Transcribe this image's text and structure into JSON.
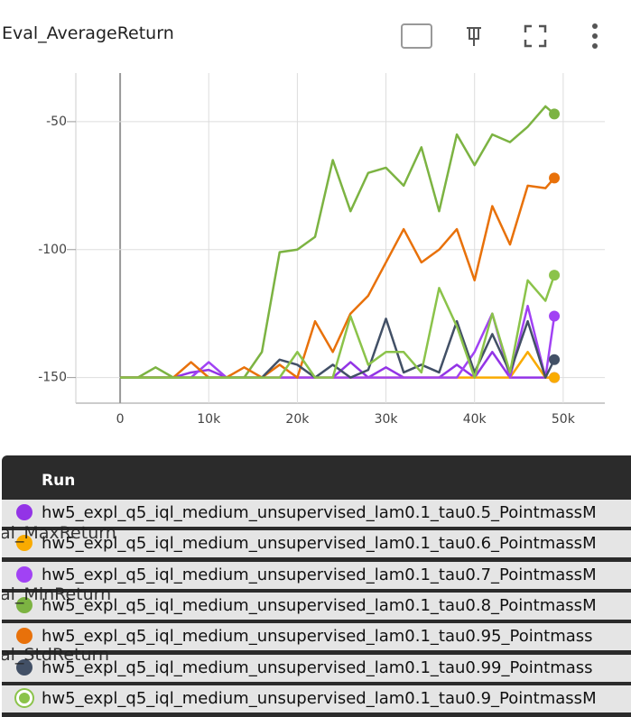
{
  "chart_data": {
    "type": "line",
    "title": "Eval_AverageReturn",
    "x": [
      0,
      2000,
      4000,
      6000,
      8000,
      10000,
      12000,
      14000,
      16000,
      18000,
      20000,
      22000,
      24000,
      26000,
      28000,
      30000,
      32000,
      34000,
      36000,
      38000,
      40000,
      42000,
      44000,
      46000,
      48000,
      49000
    ],
    "xlim": [
      -5000,
      54700
    ],
    "xticks": [
      0,
      {
        "value": 10000,
        "label": "10k"
      },
      {
        "value": 20000,
        "label": "20k"
      },
      {
        "value": 30000,
        "label": "30k"
      },
      {
        "value": 40000,
        "label": "40k"
      },
      {
        "value": 50000,
        "label": "50k"
      }
    ],
    "ylim": [
      -160,
      -31
    ],
    "yticks": [
      -150,
      -100,
      -50
    ],
    "grid": true,
    "series": [
      {
        "name": "hw5_expl_q5_iql_medium_unsupervised_lam0.1_tau0.5_PointmassM",
        "color": "#9334e6",
        "values": [
          -150,
          -150,
          -150,
          -150,
          -148,
          -147,
          -150,
          -150,
          -150,
          -150,
          -150,
          -150,
          -150,
          -144,
          -150,
          -146,
          -150,
          -150,
          -150,
          -145,
          -150,
          -140,
          -150,
          -150,
          -150,
          -150
        ]
      },
      {
        "name": "hw5_expl_q5_iql_medium_unsupervised_lam0.1_tau0.6_PointmassM",
        "color": "#f9ab00",
        "values": [
          -150,
          -150,
          -150,
          -150,
          -150,
          -150,
          -150,
          -150,
          -150,
          -150,
          -150,
          -150,
          -150,
          -150,
          -150,
          -150,
          -150,
          -150,
          -150,
          -150,
          -150,
          -150,
          -150,
          -140,
          -150,
          -150
        ]
      },
      {
        "name": "hw5_expl_q5_iql_medium_unsupervised_lam0.1_tau0.7_PointmassM",
        "color": "#a142f4",
        "values": [
          -150,
          -150,
          -150,
          -150,
          -150,
          -144,
          -150,
          -150,
          -150,
          -150,
          -150,
          -150,
          -150,
          -150,
          -150,
          -150,
          -150,
          -150,
          -150,
          -150,
          -140,
          -125,
          -150,
          -122,
          -150,
          -126
        ]
      },
      {
        "name": "hw5_expl_q5_iql_medium_unsupervised_lam0.1_tau0.8_PointmassM",
        "color": "#7cb342",
        "values": [
          -150,
          -150,
          -146,
          -150,
          -150,
          -150,
          -150,
          -150,
          -140,
          -101,
          -100,
          -95,
          -65,
          -85,
          -70,
          -68,
          -75,
          -60,
          -85,
          -55,
          -67,
          -55,
          -58,
          -52,
          -44,
          -47
        ]
      },
      {
        "name": "hw5_expl_q5_iql_medium_unsupervised_lam0.1_tau0.95_Pointmass",
        "color": "#e8710a",
        "values": [
          -150,
          -150,
          -150,
          -150,
          -144,
          -150,
          -150,
          -146,
          -150,
          -145,
          -150,
          -128,
          -140,
          -125,
          -118,
          -105,
          -92,
          -105,
          -100,
          -92,
          -112,
          -83,
          -98,
          -75,
          -76,
          -72
        ]
      },
      {
        "name": "hw5_expl_q5_iql_medium_unsupervised_lam0.1_tau0.99_Pointmass",
        "color": "#425066",
        "values": [
          -150,
          -150,
          -150,
          -150,
          -150,
          -150,
          -150,
          -150,
          -150,
          -143,
          -145,
          -150,
          -145,
          -150,
          -147,
          -127,
          -148,
          -145,
          -148,
          -128,
          -148,
          -133,
          -148,
          -128,
          -150,
          -143
        ]
      },
      {
        "name": "hw5_expl_q5_iql_medium_unsupervised_lam0.1_tau0.9_PointmassM",
        "color": "#8bc34a",
        "values": [
          -150,
          -150,
          -150,
          -150,
          -150,
          -150,
          -150,
          -150,
          -150,
          -150,
          -140,
          -150,
          -150,
          -126,
          -145,
          -140,
          -140,
          -148,
          -115,
          -130,
          -150,
          -125,
          -148,
          -112,
          -120,
          -110
        ]
      }
    ]
  },
  "tooltip": {
    "header": "Run"
  },
  "background_labels": [
    "al_MaxReturn",
    "al_MinReturn",
    "al_StdReturn"
  ]
}
